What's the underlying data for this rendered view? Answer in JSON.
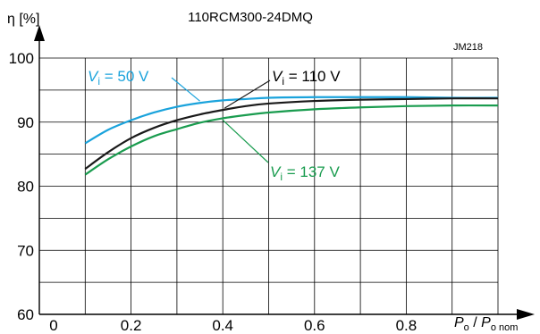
{
  "chart_data": {
    "type": "line",
    "title": "110RCM300-24DMQ",
    "code": "JM218",
    "ylabel": "η [%]",
    "xlabel": {
      "main": "P",
      "sub1": "o",
      "slash": " / ",
      "main2": "P",
      "sub2": "o nom"
    },
    "xlim": [
      0,
      1.0
    ],
    "ylim": [
      60,
      100
    ],
    "x_ticks": [
      0,
      0.2,
      0.4,
      0.6,
      0.8
    ],
    "x_tick_labels": [
      "0",
      "0.2",
      "0.4",
      "0.6",
      "0.8"
    ],
    "y_ticks": [
      60,
      70,
      80,
      90,
      100
    ],
    "y_tick_labels": [
      "60",
      "70",
      "80",
      "90",
      "100"
    ],
    "grid": true,
    "series": [
      {
        "label": {
          "v": "V",
          "sub": "i",
          "rest": " = 50 V"
        },
        "color": "#1aa3dc",
        "points": [
          [
            0.1,
            86.7
          ],
          [
            0.15,
            88.8
          ],
          [
            0.2,
            90.3
          ],
          [
            0.25,
            91.5
          ],
          [
            0.3,
            92.4
          ],
          [
            0.35,
            93.0
          ],
          [
            0.4,
            93.4
          ],
          [
            0.45,
            93.6
          ],
          [
            0.5,
            93.8
          ],
          [
            0.6,
            93.9
          ],
          [
            0.7,
            93.9
          ],
          [
            0.8,
            93.9
          ],
          [
            0.9,
            93.8
          ],
          [
            1.0,
            93.8
          ]
        ]
      },
      {
        "label": {
          "v": "V",
          "sub": "i",
          "rest": " = 110 V"
        },
        "color": "#1a1a1a",
        "points": [
          [
            0.1,
            82.7
          ],
          [
            0.15,
            85.3
          ],
          [
            0.2,
            87.5
          ],
          [
            0.25,
            89.1
          ],
          [
            0.3,
            90.3
          ],
          [
            0.35,
            91.2
          ],
          [
            0.4,
            91.9
          ],
          [
            0.45,
            92.5
          ],
          [
            0.5,
            92.9
          ],
          [
            0.6,
            93.3
          ],
          [
            0.7,
            93.5
          ],
          [
            0.8,
            93.6
          ],
          [
            0.9,
            93.7
          ],
          [
            1.0,
            93.7
          ]
        ]
      },
      {
        "label": {
          "v": "V",
          "sub": "i",
          "rest": " = 137 V"
        },
        "color": "#1a9c4f",
        "points": [
          [
            0.1,
            81.8
          ],
          [
            0.15,
            84.2
          ],
          [
            0.2,
            86.2
          ],
          [
            0.25,
            87.8
          ],
          [
            0.3,
            88.9
          ],
          [
            0.35,
            89.9
          ],
          [
            0.4,
            90.6
          ],
          [
            0.45,
            91.1
          ],
          [
            0.5,
            91.5
          ],
          [
            0.6,
            92.0
          ],
          [
            0.7,
            92.3
          ],
          [
            0.8,
            92.5
          ],
          [
            0.9,
            92.6
          ],
          [
            1.0,
            92.6
          ]
        ]
      }
    ]
  }
}
